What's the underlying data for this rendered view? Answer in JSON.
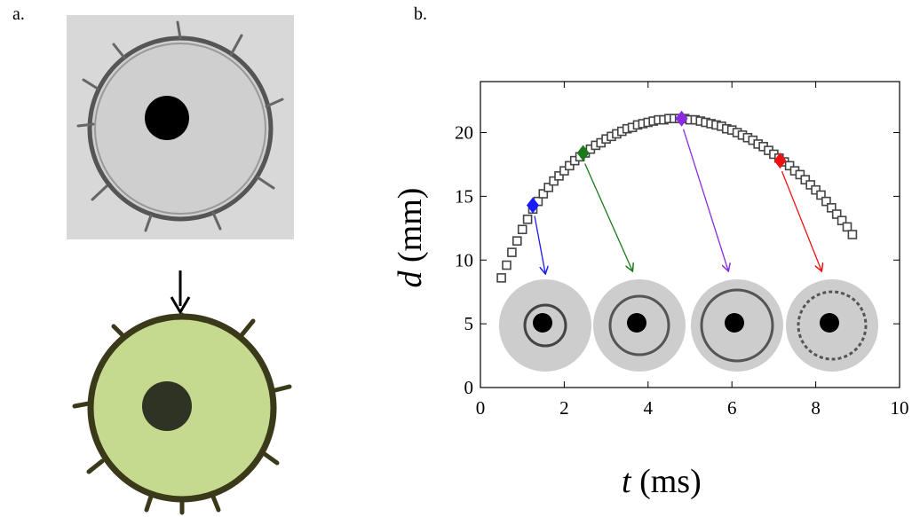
{
  "panel_labels": [
    "a.",
    "b."
  ],
  "chart_data": {
    "type": "scatter",
    "x_label_var": "t",
    "x_label_unit": "(ms)",
    "y_label_var": "d",
    "y_label_unit": "(mm)",
    "xlim": [
      0,
      10
    ],
    "xticks": [
      0,
      2,
      4,
      6,
      8,
      10
    ],
    "ylim": [
      0,
      24
    ],
    "yticks": [
      0,
      5,
      10,
      15,
      20
    ],
    "series": [
      {
        "color": "#444444",
        "x": [
          0.5,
          0.625,
          0.75,
          0.875,
          1.0,
          1.125,
          1.25,
          1.375,
          1.5,
          1.625,
          1.75,
          1.875,
          2.0,
          2.125,
          2.25,
          2.375,
          2.5,
          2.625,
          2.75,
          2.875,
          3.0,
          3.125,
          3.25,
          3.375,
          3.5,
          3.625,
          3.75,
          3.875,
          4.0,
          4.125,
          4.25,
          4.375,
          4.5,
          4.625,
          4.75,
          4.875,
          5.0,
          5.125,
          5.25,
          5.375,
          5.5,
          5.625,
          5.75,
          5.875,
          6.0,
          6.125,
          6.25,
          6.375,
          6.5,
          6.625,
          6.75,
          6.875,
          7.0,
          7.125,
          7.25,
          7.375,
          7.5,
          7.625,
          7.75,
          7.875,
          8.0,
          8.125,
          8.25,
          8.375,
          8.5,
          8.625,
          8.75,
          8.875
        ],
        "values": [
          8.6,
          9.6,
          10.6,
          11.5,
          12.4,
          13.2,
          14.0,
          14.6,
          15.2,
          15.7,
          16.2,
          16.6,
          17.0,
          17.4,
          17.8,
          18.1,
          18.4,
          18.7,
          19.0,
          19.2,
          19.5,
          19.7,
          19.9,
          20.1,
          20.3,
          20.4,
          20.6,
          20.7,
          20.8,
          20.9,
          21.0,
          21.0,
          21.1,
          21.1,
          21.1,
          21.1,
          21.0,
          21.0,
          20.9,
          20.8,
          20.7,
          20.6,
          20.5,
          20.3,
          20.2,
          20.0,
          19.8,
          19.6,
          19.4,
          19.1,
          18.9,
          18.6,
          18.3,
          18.0,
          17.7,
          17.4,
          17.0,
          16.7,
          16.3,
          15.9,
          15.5,
          15.1,
          14.6,
          14.1,
          13.6,
          13.1,
          12.6,
          12.0
        ]
      }
    ],
    "highlights": {
      "x": [
        1.25,
        2.45,
        4.8,
        7.15
      ],
      "values": [
        14.3,
        18.4,
        21.1,
        17.8
      ],
      "colors": [
        "#1a1aff",
        "#1a7a1a",
        "#8a2be2",
        "#ee1111"
      ]
    }
  }
}
